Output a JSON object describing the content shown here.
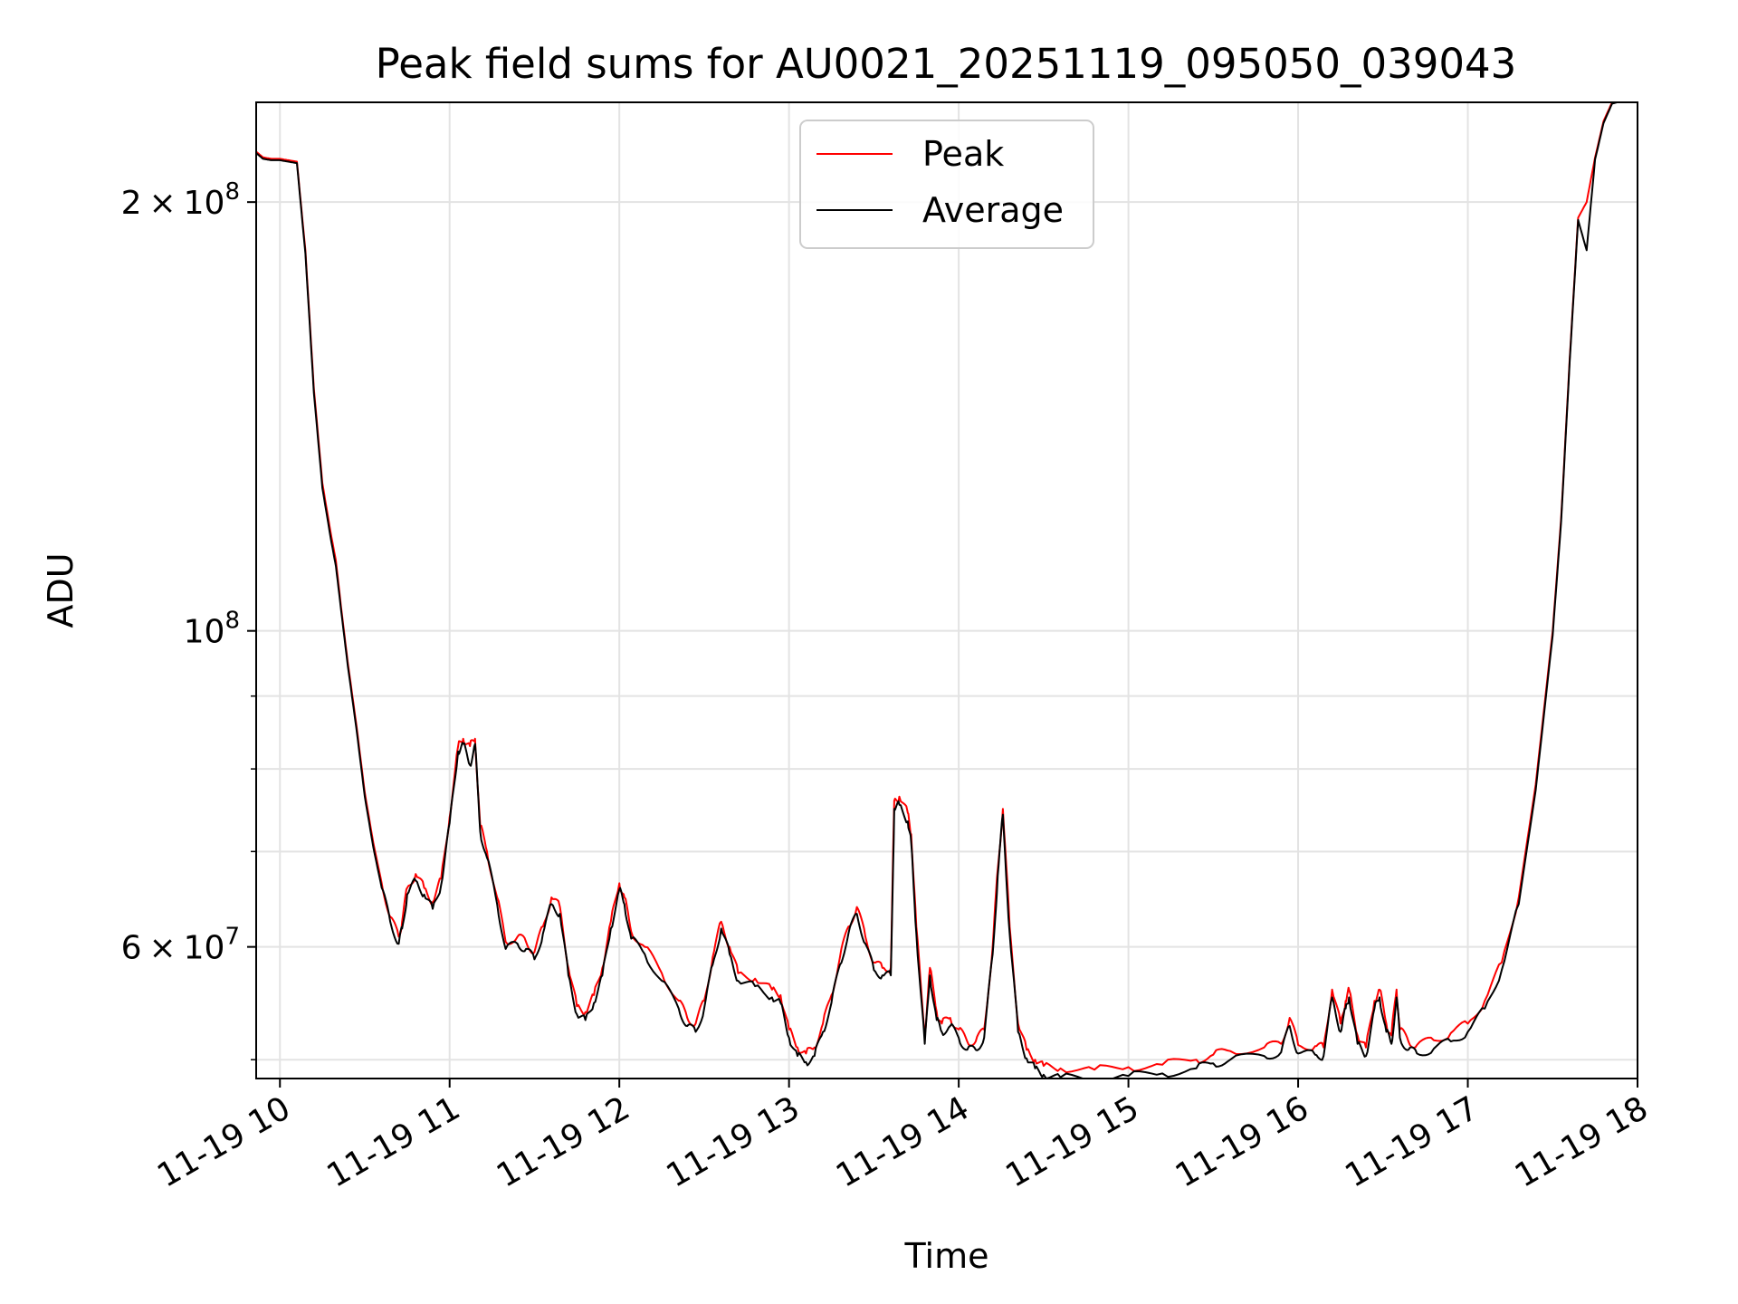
{
  "chart_data": {
    "type": "line",
    "title": "Peak field sums for AU0021_20251119_095050_039043",
    "xlabel": "Time",
    "ylabel": "ADU",
    "yscale": "log",
    "xlim": [
      9.86,
      18.0
    ],
    "ylim": [
      48500000,
      235000000
    ],
    "grid": true,
    "legend_position": "top-center",
    "x_ticks": [
      {
        "value": 10,
        "label": "11-19 10"
      },
      {
        "value": 11,
        "label": "11-19 11"
      },
      {
        "value": 12,
        "label": "11-19 12"
      },
      {
        "value": 13,
        "label": "11-19 13"
      },
      {
        "value": 14,
        "label": "11-19 14"
      },
      {
        "value": 15,
        "label": "11-19 15"
      },
      {
        "value": 16,
        "label": "11-19 16"
      },
      {
        "value": 17,
        "label": "11-19 17"
      },
      {
        "value": 18,
        "label": "11-19 18"
      }
    ],
    "y_ticks": [
      {
        "value": 60000000,
        "mantissa": "6",
        "exponent": "7"
      },
      {
        "value": 100000000,
        "mantissa": "",
        "exponent": "8"
      },
      {
        "value": 200000000,
        "mantissa": "2",
        "exponent": "8"
      }
    ],
    "y_minor_ticks": [
      50000000,
      70000000,
      80000000,
      90000000
    ],
    "times_x": "×",
    "ten": "10",
    "series": [
      {
        "name": "Peak",
        "color": "#ff0000",
        "x": [
          9.86,
          9.9,
          9.95,
          10.0,
          10.05,
          10.1,
          10.15,
          10.2,
          10.25,
          10.3,
          10.33,
          10.36,
          10.4,
          10.45,
          10.5,
          10.55,
          10.6,
          10.65,
          10.7,
          10.72,
          10.75,
          10.8,
          10.85,
          10.9,
          10.95,
          11.0,
          11.05,
          11.08,
          11.12,
          11.15,
          11.18,
          11.22,
          11.28,
          11.33,
          11.4,
          11.45,
          11.5,
          11.55,
          11.6,
          11.65,
          11.7,
          11.75,
          11.8,
          11.85,
          11.9,
          11.95,
          12.0,
          12.03,
          12.07,
          12.15,
          12.25,
          12.35,
          12.4,
          12.45,
          12.5,
          12.55,
          12.6,
          12.65,
          12.7,
          12.8,
          12.9,
          12.95,
          13.0,
          13.05,
          13.1,
          13.15,
          13.2,
          13.25,
          13.3,
          13.35,
          13.4,
          13.45,
          13.5,
          13.55,
          13.6,
          13.62,
          13.65,
          13.7,
          13.72,
          13.75,
          13.8,
          13.83,
          13.87,
          13.9,
          13.95,
          14.0,
          14.05,
          14.1,
          14.15,
          14.2,
          14.23,
          14.26,
          14.3,
          14.35,
          14.4,
          14.45,
          14.5,
          14.6,
          14.8,
          15.0,
          15.2,
          15.4,
          15.5,
          15.6,
          15.8,
          15.9,
          15.95,
          16.0,
          16.1,
          16.15,
          16.2,
          16.25,
          16.28,
          16.3,
          16.35,
          16.4,
          16.45,
          16.48,
          16.52,
          16.55,
          16.58,
          16.6,
          16.65,
          16.7,
          16.8,
          16.9,
          17.0,
          17.1,
          17.2,
          17.3,
          17.4,
          17.5,
          17.55,
          17.6,
          17.65,
          17.7,
          17.75,
          17.8,
          17.85,
          17.88
        ],
        "values": [
          217000000,
          215000000,
          214500000,
          214500000,
          214000000,
          213500000,
          185000000,
          148000000,
          127000000,
          117000000,
          112000000,
          104000000,
          95000000,
          86000000,
          77000000,
          71000000,
          66500000,
          63000000,
          61000000,
          62500000,
          66000000,
          67500000,
          66000000,
          64500000,
          67000000,
          74000000,
          83000000,
          84000000,
          83000000,
          84000000,
          73000000,
          70000000,
          65000000,
          60500000,
          61000000,
          60500000,
          59500000,
          62000000,
          65000000,
          64000000,
          58000000,
          54500000,
          54000000,
          55500000,
          58000000,
          62500000,
          66500000,
          65000000,
          61500000,
          60000000,
          57500000,
          55000000,
          53500000,
          53000000,
          55000000,
          59000000,
          62500000,
          60000000,
          57500000,
          57000000,
          56000000,
          55500000,
          52500000,
          51000000,
          50500000,
          51000000,
          53000000,
          55500000,
          59000000,
          62000000,
          64000000,
          61000000,
          58500000,
          58000000,
          58000000,
          76000000,
          76500000,
          74500000,
          72000000,
          62000000,
          52000000,
          58000000,
          54000000,
          53000000,
          53500000,
          52500000,
          51500000,
          51500000,
          52500000,
          60000000,
          68000000,
          75000000,
          62000000,
          53000000,
          50800000,
          50000000,
          49500000,
          49300000,
          49200000,
          49400000,
          49600000,
          50000000,
          50400000,
          50700000,
          51000000,
          51300000,
          53500000,
          51200000,
          51100000,
          51000000,
          56000000,
          53000000,
          55000000,
          56000000,
          52000000,
          51000000,
          55000000,
          56000000,
          53000000,
          52000000,
          56000000,
          52500000,
          51500000,
          51200000,
          51600000,
          52200000,
          53000000,
          55000000,
          58500000,
          65000000,
          78000000,
          100000000,
          120000000,
          155000000,
          195000000,
          200000000,
          215000000,
          228000000,
          235000000,
          235000000
        ]
      },
      {
        "name": "Average",
        "color": "#000000",
        "x": [
          9.86,
          9.9,
          9.95,
          10.0,
          10.05,
          10.1,
          10.15,
          10.2,
          10.25,
          10.3,
          10.33,
          10.36,
          10.4,
          10.45,
          10.5,
          10.55,
          10.6,
          10.65,
          10.7,
          10.72,
          10.75,
          10.8,
          10.85,
          10.9,
          10.95,
          11.0,
          11.05,
          11.08,
          11.12,
          11.15,
          11.18,
          11.22,
          11.28,
          11.33,
          11.4,
          11.45,
          11.5,
          11.55,
          11.6,
          11.65,
          11.7,
          11.75,
          11.8,
          11.85,
          11.9,
          11.95,
          12.0,
          12.03,
          12.07,
          12.15,
          12.25,
          12.35,
          12.4,
          12.45,
          12.5,
          12.55,
          12.6,
          12.65,
          12.7,
          12.8,
          12.9,
          12.95,
          13.0,
          13.05,
          13.1,
          13.15,
          13.2,
          13.25,
          13.3,
          13.35,
          13.4,
          13.45,
          13.5,
          13.55,
          13.6,
          13.62,
          13.65,
          13.7,
          13.72,
          13.75,
          13.8,
          13.83,
          13.87,
          13.9,
          13.95,
          14.0,
          14.05,
          14.1,
          14.15,
          14.2,
          14.23,
          14.26,
          14.3,
          14.35,
          14.4,
          14.45,
          14.5,
          14.6,
          14.8,
          15.0,
          15.2,
          15.4,
          15.5,
          15.6,
          15.8,
          15.9,
          15.95,
          16.0,
          16.1,
          16.15,
          16.2,
          16.25,
          16.28,
          16.3,
          16.35,
          16.4,
          16.45,
          16.48,
          16.52,
          16.55,
          16.58,
          16.6,
          16.65,
          16.7,
          16.8,
          16.9,
          17.0,
          17.1,
          17.2,
          17.3,
          17.4,
          17.5,
          17.55,
          17.6,
          17.65,
          17.7,
          17.75,
          17.8,
          17.85,
          17.88
        ],
        "values": [
          216500000,
          214500000,
          214000000,
          214000000,
          213500000,
          213000000,
          184000000,
          147000000,
          126000000,
          116000000,
          111000000,
          103500000,
          94500000,
          85500000,
          76500000,
          70500000,
          66000000,
          62500000,
          60300000,
          61800000,
          65300000,
          66800000,
          65300000,
          63800000,
          66300000,
          73300000,
          82300000,
          83300000,
          80500000,
          83300000,
          72300000,
          69300000,
          64300000,
          59800000,
          60300000,
          59800000,
          58800000,
          61300000,
          64300000,
          63300000,
          57300000,
          53800000,
          53300000,
          54800000,
          57300000,
          61800000,
          65800000,
          64300000,
          60800000,
          59300000,
          56800000,
          54300000,
          52800000,
          52300000,
          54300000,
          58300000,
          61800000,
          59300000,
          56800000,
          56300000,
          55300000,
          54800000,
          51800000,
          50300000,
          49800000,
          50300000,
          52300000,
          54800000,
          58300000,
          61300000,
          63300000,
          60300000,
          57800000,
          57300000,
          57300000,
          75000000,
          75500000,
          73500000,
          71000000,
          61300000,
          51300000,
          57300000,
          53300000,
          52300000,
          52800000,
          51800000,
          50800000,
          50800000,
          51800000,
          59300000,
          67300000,
          74300000,
          61300000,
          52300000,
          50100000,
          49300000,
          48800000,
          48600000,
          48500000,
          48700000,
          48900000,
          49300000,
          49700000,
          50000000,
          50300000,
          50600000,
          52800000,
          50500000,
          50400000,
          50300000,
          55300000,
          52300000,
          54300000,
          55300000,
          51300000,
          50300000,
          54300000,
          55300000,
          52300000,
          51300000,
          55300000,
          51800000,
          50800000,
          50500000,
          50900000,
          51500000,
          52300000,
          54300000,
          57800000,
          64300000,
          77300000,
          99300000,
          119300000,
          154300000,
          194300000,
          185000000,
          214300000,
          227300000,
          234500000,
          235000000
        ]
      }
    ]
  }
}
